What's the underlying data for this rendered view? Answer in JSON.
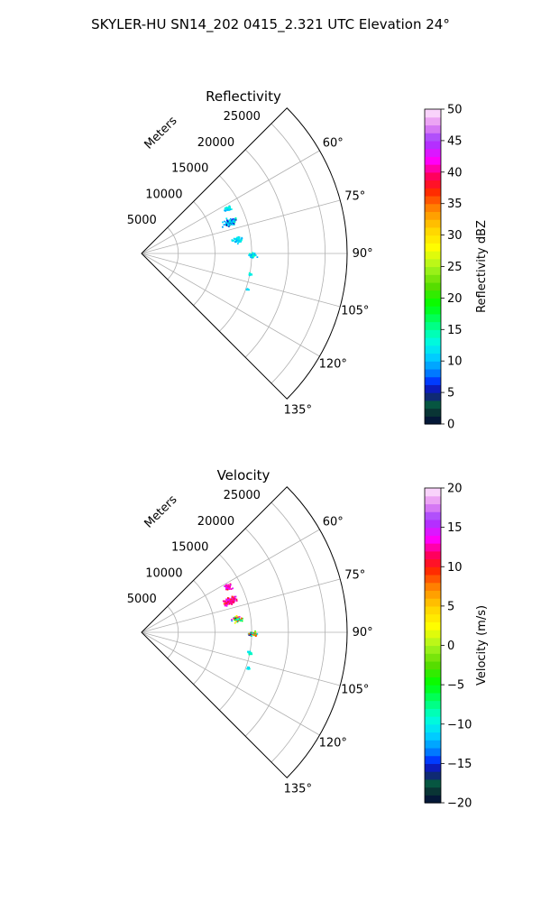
{
  "figure": {
    "title": "SKYLER-HU  SN14_202  0415_2.321 UTC Elevation 24°"
  },
  "chart_data": [
    {
      "type": "polar-sector",
      "id": "reflectivity",
      "title": "Reflectivity",
      "radial_label": "Meters",
      "radial_ticks": [
        "5000",
        "10000",
        "15000",
        "20000",
        "25000"
      ],
      "radial_tick_values": [
        5000,
        10000,
        15000,
        20000,
        25000
      ],
      "rmax": 28000,
      "theta_range_deg": [
        45,
        135
      ],
      "theta_ticks": [
        "60°",
        "75°",
        "90°",
        "105°",
        "120°",
        "135°"
      ],
      "theta_tick_values": [
        60,
        75,
        90,
        105,
        120,
        135
      ],
      "colorbar": {
        "label": "Reflectivity dBZ",
        "min": 0,
        "max": 50,
        "ticks": [
          "0",
          "5",
          "10",
          "15",
          "20",
          "25",
          "30",
          "35",
          "40",
          "45",
          "50"
        ],
        "tick_values": [
          0,
          5,
          10,
          15,
          20,
          25,
          30,
          35,
          40,
          45,
          50
        ]
      },
      "clusters": [
        {
          "az": 62.0,
          "r": 13200,
          "dr": 700,
          "daz": 2.0,
          "n": 40,
          "vmin": 9,
          "vmax": 14
        },
        {
          "az": 70.0,
          "r": 12700,
          "dr": 1300,
          "daz": 3.0,
          "n": 95,
          "vmin": 5,
          "vmax": 15
        },
        {
          "az": 81.5,
          "r": 13100,
          "dr": 900,
          "daz": 2.5,
          "n": 45,
          "vmin": 9,
          "vmax": 14
        },
        {
          "az": 90.5,
          "r": 15000,
          "dr": 800,
          "daz": 2.0,
          "n": 45,
          "vmin": 9,
          "vmax": 15
        },
        {
          "az": 100.5,
          "r": 14900,
          "dr": 400,
          "daz": 1.2,
          "n": 14,
          "vmin": 10,
          "vmax": 14
        },
        {
          "az": 108.5,
          "r": 15200,
          "dr": 300,
          "daz": 1.0,
          "n": 6,
          "vmin": 10,
          "vmax": 14
        }
      ]
    },
    {
      "type": "polar-sector",
      "id": "velocity",
      "title": "Velocity",
      "radial_label": "Meters",
      "radial_ticks": [
        "5000",
        "10000",
        "15000",
        "20000",
        "25000"
      ],
      "radial_tick_values": [
        5000,
        10000,
        15000,
        20000,
        25000
      ],
      "rmax": 28000,
      "theta_range_deg": [
        45,
        135
      ],
      "theta_ticks": [
        "60°",
        "75°",
        "90°",
        "105°",
        "120°",
        "135°"
      ],
      "theta_tick_values": [
        60,
        75,
        90,
        105,
        120,
        135
      ],
      "colorbar": {
        "label": "Velocity (m/s)",
        "min": -20,
        "max": 20,
        "ticks": [
          "−20",
          "−15",
          "−10",
          "−5",
          "0",
          "5",
          "10",
          "15",
          "20"
        ],
        "tick_values": [
          -20,
          -15,
          -10,
          -5,
          0,
          5,
          10,
          15,
          20
        ]
      },
      "clusters": [
        {
          "az": 62.0,
          "r": 13200,
          "dr": 700,
          "daz": 2.0,
          "n": 40,
          "vmin": 10,
          "vmax": 15
        },
        {
          "az": 70.0,
          "r": 12700,
          "dr": 1300,
          "daz": 3.0,
          "n": 95,
          "vmin": 9,
          "vmax": 15
        },
        {
          "az": 81.5,
          "r": 13100,
          "dr": 900,
          "daz": 2.5,
          "n": 45,
          "vmin": -17,
          "vmax": 16
        },
        {
          "az": 90.5,
          "r": 15000,
          "dr": 800,
          "daz": 2.0,
          "n": 45,
          "vmin": -17,
          "vmax": 15
        },
        {
          "az": 100.5,
          "r": 14900,
          "dr": 400,
          "daz": 1.2,
          "n": 14,
          "vmin": -11,
          "vmax": -8
        },
        {
          "az": 108.5,
          "r": 15200,
          "dr": 300,
          "daz": 1.0,
          "n": 6,
          "vmin": -12,
          "vmax": -9
        }
      ]
    }
  ]
}
